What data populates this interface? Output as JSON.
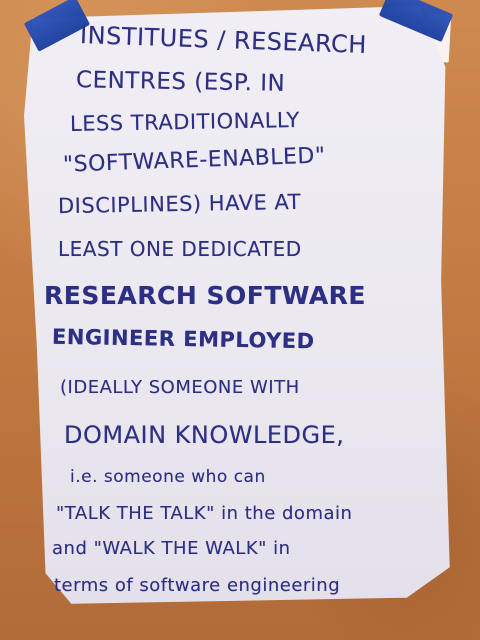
{
  "note": {
    "lines": [
      "INSTITUES / RESEARCH",
      "CENTRES (ESP. IN",
      "LESS TRADITIONALLY",
      "\"SOFTWARE-ENABLED\"",
      "DISCIPLINES) HAVE AT",
      "LEAST ONE DEDICATED",
      "RESEARCH SOFTWARE",
      "ENGINEER EMPLOYED",
      "(IDEALLY SOMEONE WITH",
      "DOMAIN KNOWLEDGE,",
      "i.e. someone who can",
      "\"TALK THE TALK\" in the domain",
      "and \"WALK THE WALK\" in",
      "terms of software engineering"
    ]
  },
  "colors": {
    "ink": "#2c2f83",
    "paper": "#ece8f1",
    "table": "#c97f43",
    "tape": "#1f46ab"
  }
}
